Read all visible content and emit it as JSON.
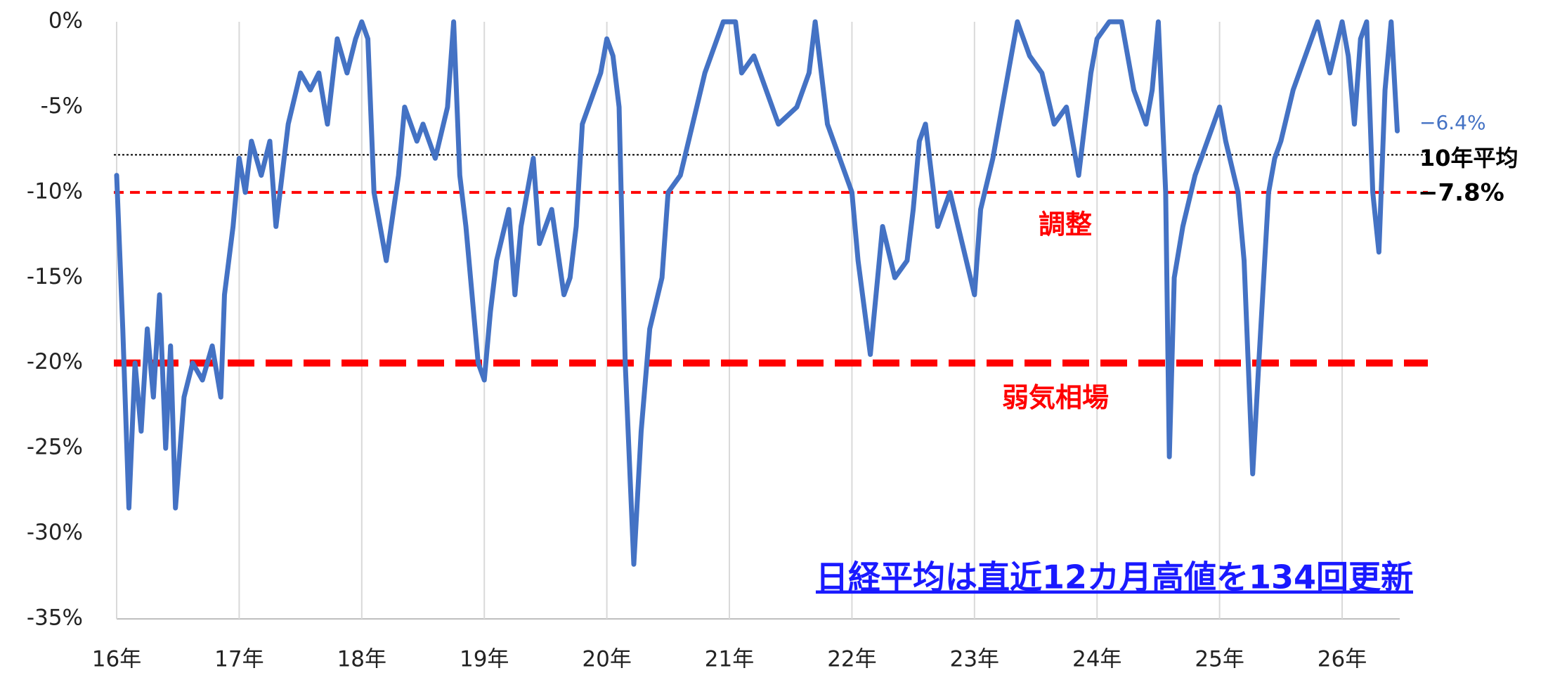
{
  "chart_data": {
    "type": "line",
    "x": [
      16.0,
      16.05,
      16.1,
      16.15,
      16.2,
      16.25,
      16.3,
      16.35,
      16.4,
      16.44,
      16.48,
      16.55,
      16.62,
      16.7,
      16.78,
      16.85,
      16.88,
      16.95,
      17.0,
      17.05,
      17.1,
      17.18,
      17.25,
      17.3,
      17.4,
      17.5,
      17.58,
      17.65,
      17.72,
      17.8,
      17.88,
      17.95,
      18.0,
      18.05,
      18.1,
      18.15,
      18.2,
      18.3,
      18.35,
      18.45,
      18.5,
      18.6,
      18.7,
      18.75,
      18.8,
      18.85,
      18.95,
      19.0,
      19.05,
      19.1,
      19.2,
      19.25,
      19.3,
      19.4,
      19.45,
      19.55,
      19.65,
      19.7,
      19.75,
      19.8,
      19.9,
      19.95,
      20.0,
      20.05,
      20.1,
      20.15,
      20.22,
      20.28,
      20.35,
      20.45,
      20.5,
      20.6,
      20.7,
      20.8,
      20.9,
      20.95,
      21.05,
      21.1,
      21.2,
      21.3,
      21.4,
      21.55,
      21.65,
      21.7,
      21.8,
      21.9,
      22.0,
      22.05,
      22.15,
      22.25,
      22.35,
      22.45,
      22.5,
      22.55,
      22.6,
      22.7,
      22.8,
      22.9,
      23.0,
      23.05,
      23.15,
      23.25,
      23.35,
      23.45,
      23.55,
      23.65,
      23.75,
      23.85,
      23.95,
      24.0,
      24.1,
      24.2,
      24.3,
      24.4,
      24.45,
      24.5,
      24.56,
      24.59,
      24.63,
      24.7,
      24.8,
      24.9,
      25.0,
      25.05,
      25.15,
      25.2,
      25.27,
      25.32,
      25.4,
      25.45,
      25.5,
      25.6,
      25.7,
      25.8,
      25.9,
      26.0,
      26.05,
      26.1,
      26.15,
      26.2,
      26.25,
      26.3,
      26.35,
      26.4,
      26.45
    ],
    "series": [
      {
        "color": "#4472c4",
        "values": [
          -9,
          -18,
          -28.5,
          -20,
          -24,
          -18,
          -22,
          -16,
          -25,
          -19,
          -28.5,
          -22,
          -20,
          -21,
          -19,
          -22,
          -16,
          -12,
          -8,
          -10,
          -7,
          -9,
          -7,
          -12,
          -6,
          -3,
          -4,
          -3,
          -6,
          -1,
          -3,
          -1,
          0,
          -1,
          -10,
          -12,
          -14,
          -9,
          -5,
          -7,
          -6,
          -8,
          -5,
          0,
          -9,
          -12,
          -20,
          -21,
          -17,
          -14,
          -11,
          -16,
          -12,
          -8,
          -13,
          -11,
          -16,
          -15,
          -12,
          -6,
          -4,
          -3,
          -1,
          -2,
          -5,
          -20,
          -31.8,
          -24,
          -18,
          -15,
          -10,
          -9,
          -6,
          -3,
          -1,
          0,
          0,
          -3,
          -2,
          -4,
          -6,
          -5,
          -3,
          0,
          -6,
          -8,
          -10,
          -14,
          -19.5,
          -12,
          -15,
          -14,
          -11,
          -7,
          -6,
          -12,
          -10,
          -13,
          -16,
          -11,
          -8,
          -4,
          0,
          -2,
          -3,
          -6,
          -5,
          -9,
          -3,
          -1,
          0,
          0,
          -4,
          -6,
          -4,
          0,
          -10,
          -25.5,
          -15,
          -12,
          -9,
          -7,
          -5,
          -7,
          -10,
          -14,
          -26.5,
          -20,
          -10,
          -8,
          -7,
          -4,
          -2,
          0,
          -3,
          0,
          -2,
          -6,
          -1,
          0,
          -10,
          -13.5,
          -4,
          0,
          -6.4
        ]
      }
    ],
    "xlim": [
      16,
      26.47
    ],
    "xticks": [
      {
        "value": 16,
        "label": "16年"
      },
      {
        "value": 17,
        "label": "17年"
      },
      {
        "value": 18,
        "label": "18年"
      },
      {
        "value": 19,
        "label": "19年"
      },
      {
        "value": 20,
        "label": "20年"
      },
      {
        "value": 21,
        "label": "21年"
      },
      {
        "value": 22,
        "label": "22年"
      },
      {
        "value": 23,
        "label": "23年"
      },
      {
        "value": 24,
        "label": "24年"
      },
      {
        "value": 25,
        "label": "25年"
      },
      {
        "value": 26,
        "label": "26年"
      }
    ],
    "ylim": [
      -35,
      0
    ],
    "yticks": [
      {
        "value": 0,
        "label": "0%"
      },
      {
        "value": -5,
        "label": "-5%"
      },
      {
        "value": -10,
        "label": "-10%"
      },
      {
        "value": -15,
        "label": "-15%"
      },
      {
        "value": -20,
        "label": "-20%"
      },
      {
        "value": -25,
        "label": "-25%"
      },
      {
        "value": -30,
        "label": "-30%"
      },
      {
        "value": -35,
        "label": "-35%"
      }
    ],
    "grid": true,
    "last_value_label": "−6.4%",
    "average": {
      "label": "10年平均",
      "value": -7.8,
      "value_label": "−7.8%",
      "color": "#000000"
    },
    "reference_lines": [
      {
        "label": "調整",
        "value": -10,
        "color": "#ff0000"
      },
      {
        "label": "弱気相場",
        "value": -20,
        "color": "#ff0000"
      }
    ],
    "annotation": "日経平均は直近12カ月高値を134回更新"
  }
}
